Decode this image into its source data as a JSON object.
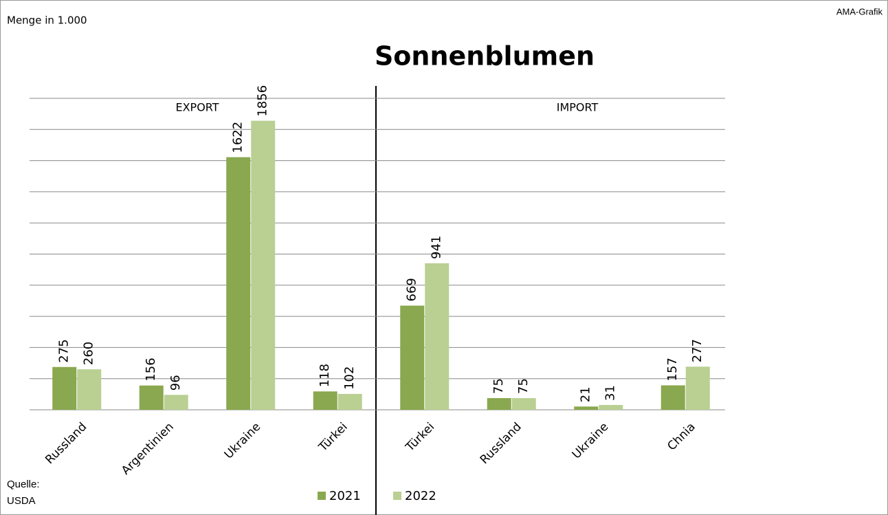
{
  "chart_data": {
    "type": "bar",
    "title": "Sonnenblumen",
    "annotations": {
      "unit": "Menge in 1.000",
      "brand": "AMA-Grafik",
      "left_section": "EXPORT",
      "right_section": "IMPORT",
      "source": [
        "Quelle:",
        "USDA"
      ]
    },
    "categories": [
      "Russland",
      "Argentinien",
      "Ukraine",
      "Türkei",
      "Türkei",
      "Russland",
      "Ukraine",
      "Chnia"
    ],
    "series": [
      {
        "name": "2021",
        "color": "#8aa84f",
        "values": [
          275,
          156,
          1622,
          118,
          669,
          75,
          21,
          157
        ]
      },
      {
        "name": "2022",
        "color": "#b9d092",
        "values": [
          260,
          96,
          1856,
          102,
          941,
          75,
          31,
          277
        ]
      }
    ],
    "ylim": [
      0,
      2000
    ],
    "yticks": [
      0,
      200,
      400,
      600,
      800,
      1000,
      1200,
      1400,
      1600,
      1800,
      2000
    ],
    "grid": true
  }
}
